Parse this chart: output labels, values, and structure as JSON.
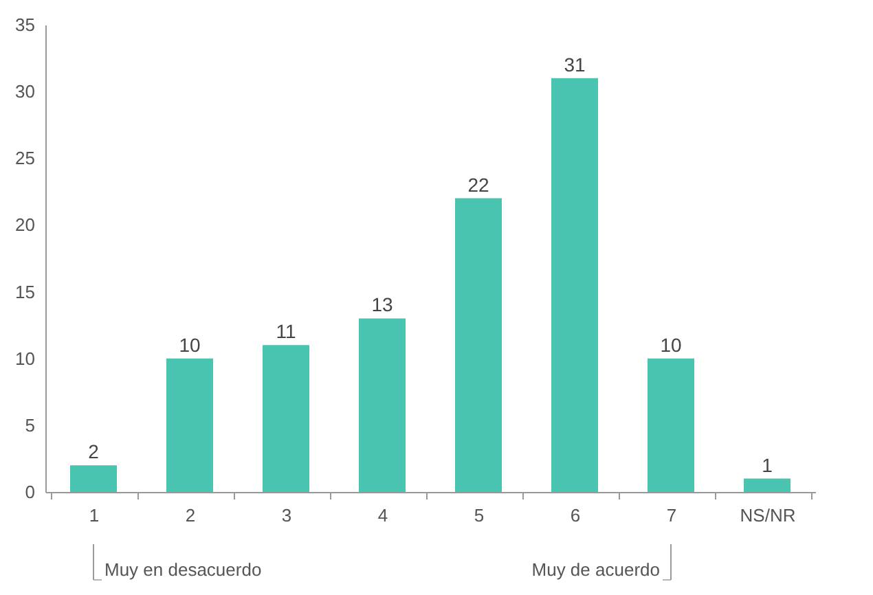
{
  "chart_data": {
    "type": "bar",
    "categories": [
      "1",
      "2",
      "3",
      "4",
      "5",
      "6",
      "7",
      "NS/NR"
    ],
    "values": [
      2,
      10,
      11,
      13,
      22,
      31,
      10,
      1
    ],
    "color": "#48c4b0",
    "ylim": [
      0,
      35
    ],
    "yticks": [
      0,
      5,
      10,
      15,
      20,
      25,
      30,
      35
    ],
    "grid": false,
    "data_labels": true,
    "annotations": [
      "Muy en desacuerdo",
      "Muy de acuerdo"
    ]
  }
}
